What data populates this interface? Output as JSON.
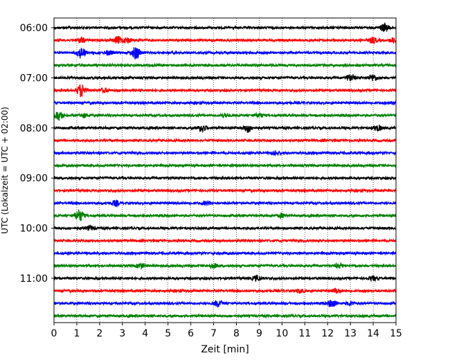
{
  "chart_data": {
    "type": "line",
    "title": "",
    "xlabel": "Zeit  [min]",
    "ylabel": "UTC (Lokalzeit = UTC + 02:00)",
    "xlim": [
      0,
      15
    ],
    "xticks": [
      0,
      1,
      2,
      3,
      4,
      5,
      6,
      7,
      8,
      9,
      10,
      11,
      12,
      13,
      14,
      15
    ],
    "xtick_labels": [
      "0",
      "1",
      "2",
      "3",
      "4",
      "5",
      "6",
      "7",
      "8",
      "9",
      "10",
      "11",
      "12",
      "13",
      "14",
      "15"
    ],
    "yticks": [
      "06:00",
      "07:00",
      "08:00",
      "09:00",
      "10:00",
      "11:00"
    ],
    "grid": "vertical dotted",
    "trace_interval_min": 15,
    "colors": [
      "#000000",
      "#ff0000",
      "#0000ff",
      "#008000"
    ],
    "traces": [
      {
        "start": "06:00",
        "color": "#000000",
        "events": [
          {
            "t": 14.5,
            "amp": 0.6
          }
        ]
      },
      {
        "start": "06:15",
        "color": "#ff0000",
        "events": [
          {
            "t": 1.2,
            "amp": 0.4
          },
          {
            "t": 2.8,
            "amp": 0.5
          },
          {
            "t": 3.2,
            "amp": 0.4
          },
          {
            "t": 14.0,
            "amp": 0.4
          },
          {
            "t": 14.9,
            "amp": 0.4
          }
        ]
      },
      {
        "start": "06:30",
        "color": "#0000ff",
        "events": [
          {
            "t": 1.2,
            "amp": 0.8
          },
          {
            "t": 2.4,
            "amp": 0.3
          },
          {
            "t": 3.6,
            "amp": 1.0
          }
        ]
      },
      {
        "start": "06:45",
        "color": "#008000",
        "events": []
      },
      {
        "start": "07:00",
        "color": "#000000",
        "events": [
          {
            "t": 13.0,
            "amp": 0.5
          },
          {
            "t": 14.0,
            "amp": 0.5
          }
        ]
      },
      {
        "start": "07:15",
        "color": "#ff0000",
        "events": [
          {
            "t": 1.2,
            "amp": 1.0
          },
          {
            "t": 2.2,
            "amp": 0.3
          }
        ]
      },
      {
        "start": "07:30",
        "color": "#0000ff",
        "events": [
          {
            "t": 15.0,
            "amp": 0.4
          }
        ]
      },
      {
        "start": "07:45",
        "color": "#008000",
        "events": [
          {
            "t": 0.2,
            "amp": 0.7
          },
          {
            "t": 1.3,
            "amp": 0.3
          },
          {
            "t": 7.5,
            "amp": 0.3
          },
          {
            "t": 9.0,
            "amp": 0.3
          }
        ]
      },
      {
        "start": "08:00",
        "color": "#000000",
        "events": [
          {
            "t": 6.5,
            "amp": 0.5
          },
          {
            "t": 8.5,
            "amp": 0.6
          },
          {
            "t": 14.2,
            "amp": 0.4
          }
        ]
      },
      {
        "start": "08:15",
        "color": "#ff0000",
        "events": []
      },
      {
        "start": "08:30",
        "color": "#0000ff",
        "events": [
          {
            "t": 9.7,
            "amp": 0.3
          }
        ]
      },
      {
        "start": "08:45",
        "color": "#008000",
        "events": []
      },
      {
        "start": "09:00",
        "color": "#000000",
        "events": []
      },
      {
        "start": "09:15",
        "color": "#ff0000",
        "events": []
      },
      {
        "start": "09:30",
        "color": "#0000ff",
        "events": [
          {
            "t": 2.7,
            "amp": 0.4
          },
          {
            "t": 6.7,
            "amp": 0.3
          }
        ]
      },
      {
        "start": "09:45",
        "color": "#008000",
        "events": [
          {
            "t": 1.1,
            "amp": 0.9
          },
          {
            "t": 10.0,
            "amp": 0.3
          }
        ]
      },
      {
        "start": "10:00",
        "color": "#000000",
        "events": [
          {
            "t": 1.6,
            "amp": 0.3
          }
        ]
      },
      {
        "start": "10:15",
        "color": "#ff0000",
        "events": []
      },
      {
        "start": "10:30",
        "color": "#0000ff",
        "events": []
      },
      {
        "start": "10:45",
        "color": "#008000",
        "events": [
          {
            "t": 3.8,
            "amp": 0.4
          },
          {
            "t": 7.0,
            "amp": 0.3
          },
          {
            "t": 12.5,
            "amp": 0.3
          }
        ]
      },
      {
        "start": "11:00",
        "color": "#000000",
        "events": [
          {
            "t": 8.9,
            "amp": 0.4
          },
          {
            "t": 14.0,
            "amp": 0.3
          }
        ]
      },
      {
        "start": "11:15",
        "color": "#ff0000",
        "events": [
          {
            "t": 10.8,
            "amp": 0.3
          },
          {
            "t": 12.4,
            "amp": 0.3
          }
        ]
      },
      {
        "start": "11:30",
        "color": "#0000ff",
        "events": [
          {
            "t": 7.2,
            "amp": 0.5
          },
          {
            "t": 12.2,
            "amp": 0.6
          },
          {
            "t": 13.0,
            "amp": 0.3
          }
        ]
      },
      {
        "start": "11:45",
        "color": "#008000",
        "events": []
      }
    ]
  }
}
